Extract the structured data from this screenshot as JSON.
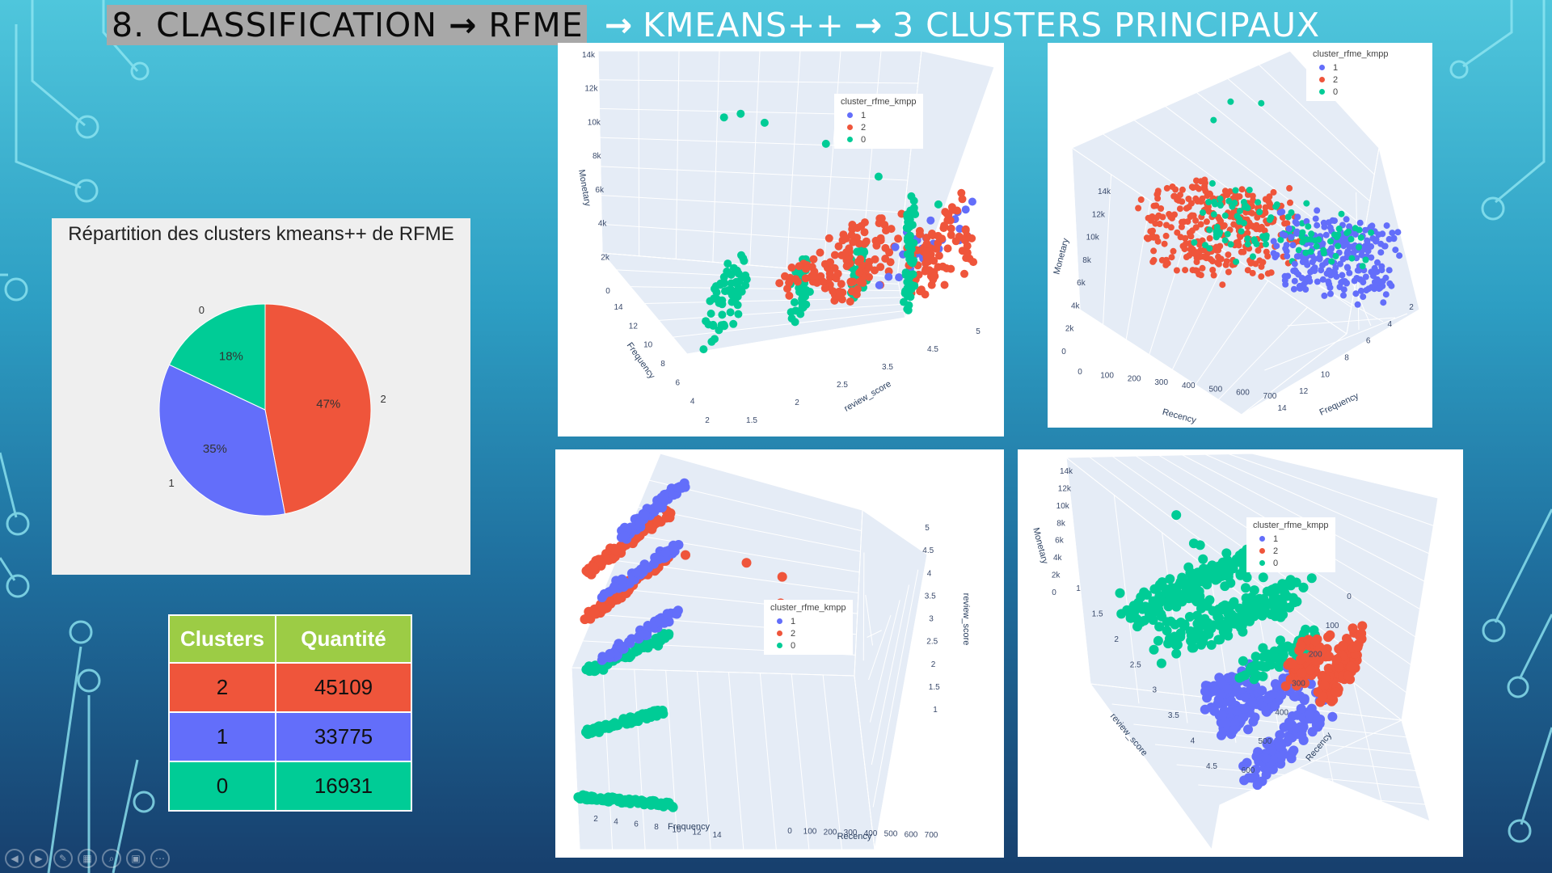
{
  "slide": {
    "title_part1": "8. CLASSIFICATION",
    "title_part2": "RFME",
    "title_part3": "KMEANS++",
    "title_part4": "3 CLUSTERS PRINCIPAUX",
    "arrow": "→"
  },
  "colors": {
    "cluster_0": "#00cc96",
    "cluster_1": "#636efa",
    "cluster_2": "#ef553b",
    "table_header": "#9ccc45"
  },
  "chart_data": [
    {
      "type": "pie",
      "title": "Répartition des clusters kmeans++ de RFME",
      "categories": [
        "2",
        "1",
        "0"
      ],
      "values": [
        47,
        35,
        18
      ],
      "value_labels": [
        "47%",
        "35%",
        "18%"
      ]
    },
    {
      "type": "table",
      "columns": [
        "Clusters",
        "Quantité"
      ],
      "rows": [
        [
          "2",
          "45109"
        ],
        [
          "1",
          "33775"
        ],
        [
          "0",
          "16931"
        ]
      ]
    },
    {
      "type": "scatter",
      "legend_title": "cluster_rfme_kmpp",
      "legend_items": [
        "1",
        "2",
        "0"
      ],
      "axes": {
        "x": {
          "label": "review_score",
          "ticks": [
            "1.5",
            "2",
            "2.5",
            "3.5",
            "4.5",
            "5"
          ]
        },
        "y": {
          "label": "Frequency",
          "ticks": [
            "2",
            "4",
            "6",
            "8",
            "10",
            "12",
            "14"
          ]
        },
        "z": {
          "label": "Monetary",
          "ticks": [
            "0",
            "2k",
            "4k",
            "6k",
            "8k",
            "10k",
            "12k",
            "14k"
          ]
        }
      }
    },
    {
      "type": "scatter",
      "legend_title": "cluster_rfme_kmpp",
      "legend_items": [
        "1",
        "2",
        "0"
      ],
      "axes": {
        "x": {
          "label": "Recency",
          "ticks": [
            "0",
            "100",
            "200",
            "300",
            "400",
            "500",
            "600",
            "700"
          ]
        },
        "y": {
          "label": "Frequency",
          "ticks": [
            "14",
            "12",
            "10",
            "8",
            "6",
            "4",
            "2"
          ]
        },
        "z": {
          "label": "Monetary",
          "ticks": [
            "0",
            "2k",
            "4k",
            "6k",
            "8k",
            "10k",
            "12k",
            "14k"
          ]
        }
      }
    },
    {
      "type": "scatter",
      "legend_title": "cluster_rfme_kmpp",
      "legend_items": [
        "1",
        "2",
        "0"
      ],
      "axes": {
        "x": {
          "label": "Frequency",
          "ticks": [
            "2",
            "4",
            "6",
            "8",
            "10",
            "12",
            "14"
          ]
        },
        "y": {
          "label": "Recency",
          "ticks": [
            "0",
            "100",
            "200",
            "300",
            "400",
            "500",
            "600",
            "700"
          ]
        },
        "z": {
          "label": "review_score",
          "ticks": [
            "1",
            "1.5",
            "2",
            "2.5",
            "3",
            "3.5",
            "4",
            "4.5",
            "5"
          ]
        }
      }
    },
    {
      "type": "scatter",
      "legend_title": "cluster_rfme_kmpp",
      "legend_items": [
        "1",
        "2",
        "0"
      ],
      "axes": {
        "x": {
          "label": "review_score",
          "ticks": [
            "1",
            "1.5",
            "2",
            "2.5",
            "3",
            "3.5",
            "4",
            "4.5"
          ]
        },
        "y": {
          "label": "Recency",
          "ticks": [
            "0",
            "100",
            "200",
            "300",
            "400",
            "500",
            "600"
          ]
        },
        "z": {
          "label": "Monetary",
          "ticks": [
            "0",
            "2k",
            "4k",
            "6k",
            "8k",
            "10k",
            "12k",
            "14k"
          ]
        }
      }
    }
  ]
}
